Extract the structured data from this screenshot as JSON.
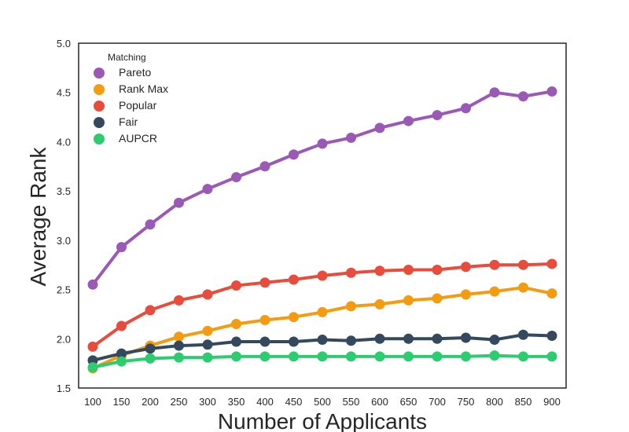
{
  "chart_data": {
    "type": "line",
    "title": "",
    "xlabel": "Number of Applicants",
    "ylabel": "Average Rank",
    "categories": [
      "100",
      "150",
      "200",
      "250",
      "300",
      "350",
      "400",
      "450",
      "500",
      "550",
      "600",
      "650",
      "700",
      "750",
      "800",
      "850",
      "900"
    ],
    "yticks": [
      "1.5",
      "2.0",
      "2.5",
      "3.0",
      "3.5",
      "4.0",
      "4.5",
      "5.0"
    ],
    "ylim": [
      1.5,
      5.0
    ],
    "grid": false,
    "legend": {
      "title": "Matching",
      "placement": "top-left"
    },
    "series": [
      {
        "name": "Pareto",
        "color": "#9b59b6",
        "values": [
          2.55,
          2.93,
          3.16,
          3.38,
          3.52,
          3.64,
          3.75,
          3.87,
          3.98,
          4.04,
          4.14,
          4.21,
          4.27,
          4.34,
          4.5,
          4.46,
          4.51
        ]
      },
      {
        "name": "Rank Max",
        "color": "#f39c12",
        "values": [
          1.7,
          1.83,
          1.93,
          2.02,
          2.08,
          2.15,
          2.19,
          2.22,
          2.27,
          2.33,
          2.35,
          2.39,
          2.41,
          2.45,
          2.48,
          2.52,
          2.46
        ]
      },
      {
        "name": "Popular",
        "color": "#e74c3c",
        "values": [
          1.92,
          2.13,
          2.29,
          2.39,
          2.45,
          2.54,
          2.57,
          2.6,
          2.64,
          2.67,
          2.69,
          2.7,
          2.7,
          2.73,
          2.75,
          2.75,
          2.76
        ]
      },
      {
        "name": "Fair",
        "color": "#34495e",
        "values": [
          1.78,
          1.85,
          1.9,
          1.93,
          1.94,
          1.97,
          1.97,
          1.97,
          1.99,
          1.98,
          2.0,
          2.0,
          2.0,
          2.01,
          1.99,
          2.04,
          2.03
        ]
      },
      {
        "name": "AUPCR",
        "color": "#2ecc71",
        "values": [
          1.71,
          1.77,
          1.8,
          1.81,
          1.81,
          1.82,
          1.82,
          1.82,
          1.82,
          1.82,
          1.82,
          1.82,
          1.82,
          1.82,
          1.83,
          1.82,
          1.82
        ]
      }
    ]
  }
}
